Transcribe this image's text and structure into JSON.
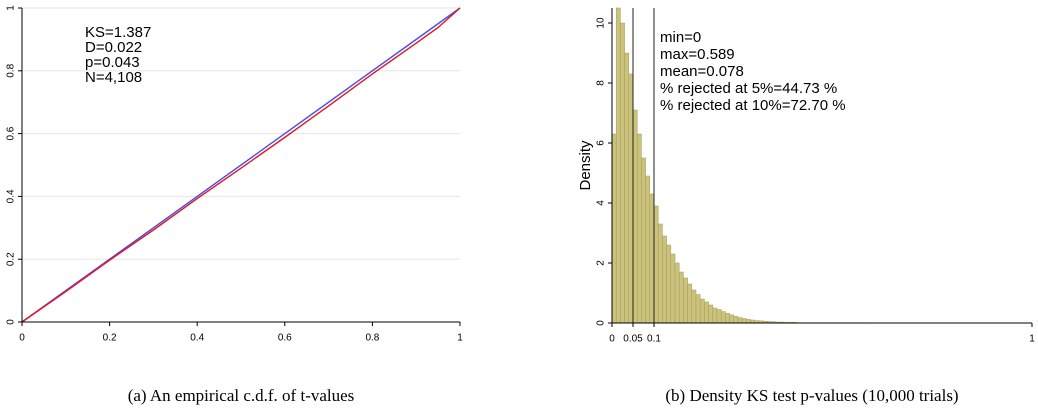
{
  "chart_data": [
    {
      "type": "line",
      "caption": "(a) An empirical c.d.f. of t-values",
      "annotations": [
        "KS=1.387",
        "D=0.022",
        "p=0.043",
        "N=4,108"
      ],
      "series": [
        {
          "color": "#4a4af0",
          "x": [
            0,
            1
          ],
          "values": [
            0,
            1
          ]
        },
        {
          "color": "#e8141c",
          "x": [
            0,
            0.1,
            0.2,
            0.3,
            0.4,
            0.5,
            0.6,
            0.7,
            0.8,
            0.9,
            0.95,
            1
          ],
          "values": [
            0,
            0.097,
            0.197,
            0.293,
            0.393,
            0.49,
            0.588,
            0.688,
            0.79,
            0.888,
            0.938,
            1
          ]
        }
      ],
      "xlim": [
        0,
        1
      ],
      "ylim": [
        0,
        1
      ],
      "xticks": [
        0,
        0.2,
        0.4,
        0.6,
        0.8,
        1
      ],
      "yticks": [
        0,
        0.2,
        0.4,
        0.6,
        0.8,
        1
      ],
      "grid": true
    },
    {
      "type": "histogram",
      "caption": "(b) Density KS test p-values (10,000 trials)",
      "y_label": "Density",
      "annotations": [
        "min=0",
        "max=0.589",
        "mean=0.078",
        "% rejected at 5%=44.73 %",
        "% rejected at 10%=72.70 %"
      ],
      "color": "#cbc27d",
      "edge_color": "#a59c55",
      "bins": [
        0,
        0.01,
        0.02,
        0.03,
        0.04,
        0.05,
        0.06,
        0.07,
        0.08,
        0.09,
        0.1,
        0.11,
        0.12,
        0.13,
        0.14,
        0.15,
        0.16,
        0.17,
        0.18,
        0.19,
        0.2,
        0.21,
        0.22,
        0.23,
        0.24,
        0.25,
        0.26,
        0.27,
        0.28,
        0.29,
        0.3,
        0.31,
        0.32,
        0.33,
        0.34,
        0.35,
        0.36,
        0.37,
        0.38,
        0.39,
        0.4,
        0.41,
        0.42,
        0.43,
        0.44,
        0.45,
        0.46,
        0.47,
        0.48,
        0.49,
        0.5,
        0.51,
        0.52,
        0.53,
        0.54,
        0.55,
        0.56,
        0.57,
        0.58,
        0.59,
        0.6
      ],
      "values": [
        6.3,
        10.5,
        10.0,
        9.0,
        8.3,
        7.1,
        6.3,
        5.5,
        4.9,
        4.3,
        3.9,
        3.3,
        2.9,
        2.6,
        2.3,
        2.0,
        1.7,
        1.5,
        1.3,
        1.1,
        0.95,
        0.8,
        0.7,
        0.6,
        0.5,
        0.45,
        0.38,
        0.32,
        0.27,
        0.22,
        0.18,
        0.15,
        0.12,
        0.1,
        0.08,
        0.07,
        0.06,
        0.05,
        0.04,
        0.03,
        0.03,
        0.02,
        0.02,
        0.02,
        0.01,
        0.01,
        0.01,
        0.01,
        0.01,
        0.01,
        0.01,
        0.01,
        0.01,
        0.01,
        0.01,
        0.01,
        0.01,
        0.01,
        0.01,
        0.01
      ],
      "vlines": [
        0.05,
        0.1
      ],
      "xlim": [
        0,
        1
      ],
      "ylim": [
        0,
        10.5
      ],
      "xticks": [
        0,
        0.05,
        0.1,
        1
      ],
      "yticks": [
        0,
        2,
        4,
        6,
        8,
        10
      ],
      "grid": false
    }
  ]
}
